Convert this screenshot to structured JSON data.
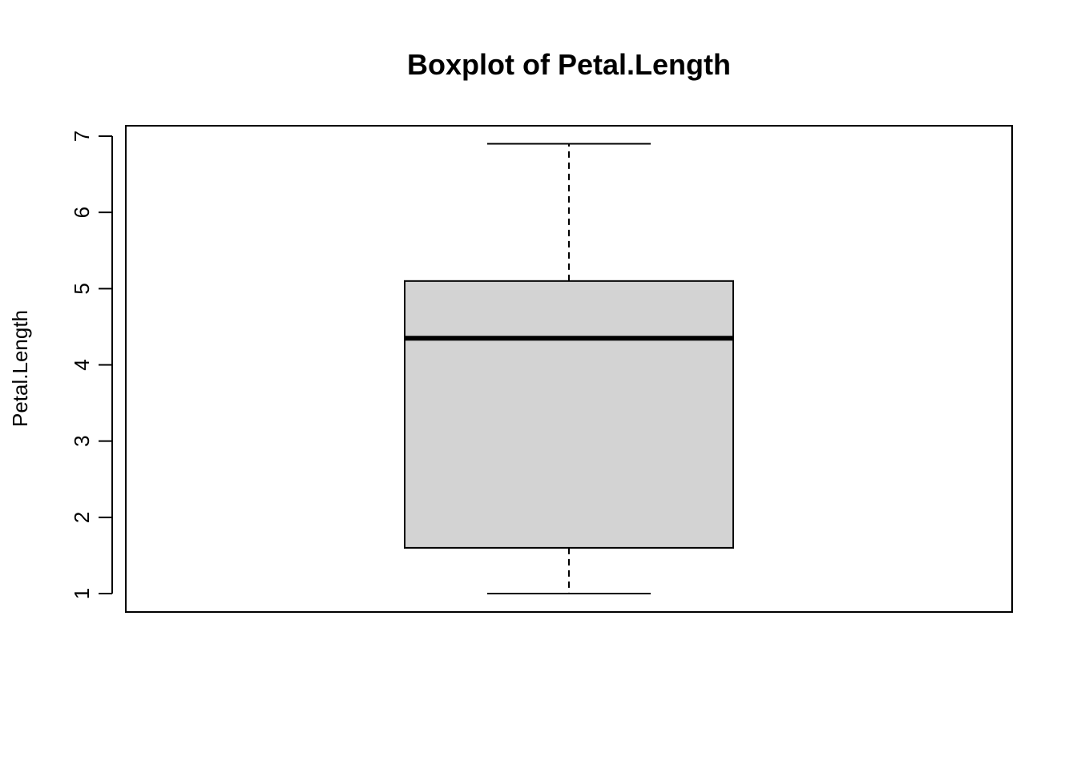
{
  "chart_data": {
    "type": "box",
    "title": "Boxplot of Petal.Length",
    "ylabel": "Petal.Length",
    "ylim": [
      1,
      7
    ],
    "yticks": [
      1,
      2,
      3,
      4,
      5,
      6,
      7
    ],
    "ytick_labels": [
      "1",
      "2",
      "3",
      "4",
      "5",
      "6",
      "7"
    ],
    "box": {
      "min": 1.0,
      "q1": 1.6,
      "median": 4.35,
      "q3": 5.1,
      "max": 6.9
    },
    "grid": false,
    "colors": {
      "box_fill": "#d3d3d3",
      "stroke": "#000000"
    }
  }
}
